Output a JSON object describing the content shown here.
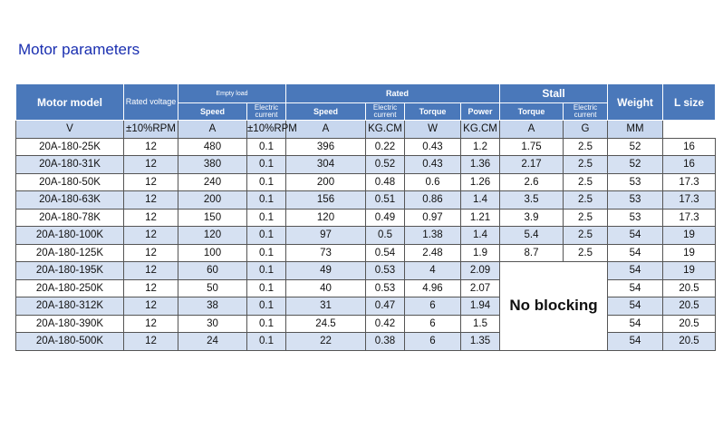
{
  "title": "Motor parameters",
  "table": {
    "groups": {
      "motor_model": "Motor model",
      "rated_voltage": "Rated voltage",
      "empty_load": "Empty load",
      "rated": "Rated",
      "stall": "Stall",
      "weight": "Weight",
      "l_size": "L size"
    },
    "subheaders": [
      "Speed",
      "Electric current",
      "Speed",
      "Electric current",
      "Torque",
      "Power",
      "Torque",
      "Electric current"
    ],
    "units": [
      "V",
      "±10%RPM",
      "A",
      "±10%RPM",
      "A",
      "KG.CM",
      "W",
      "KG.CM",
      "A",
      "G",
      "MM"
    ],
    "rows": [
      [
        "20A-180-25K",
        12,
        480,
        0.1,
        396,
        0.22,
        0.43,
        1.2,
        1.75,
        2.5,
        52,
        16
      ],
      [
        "20A-180-31K",
        12,
        380,
        0.1,
        304,
        0.52,
        0.43,
        1.36,
        2.17,
        2.5,
        52,
        16
      ],
      [
        "20A-180-50K",
        12,
        240,
        0.1,
        200,
        0.48,
        0.6,
        1.26,
        2.6,
        2.5,
        53,
        17.3
      ],
      [
        "20A-180-63K",
        12,
        200,
        0.1,
        156,
        0.51,
        0.86,
        1.4,
        3.5,
        2.5,
        53,
        17.3
      ],
      [
        "20A-180-78K",
        12,
        150,
        0.1,
        120,
        0.49,
        0.97,
        1.21,
        3.9,
        2.5,
        53,
        17.3
      ],
      [
        "20A-180-100K",
        12,
        120,
        0.1,
        97,
        0.5,
        1.38,
        1.4,
        5.4,
        2.5,
        54,
        19
      ],
      [
        "20A-180-125K",
        12,
        100,
        0.1,
        73,
        0.54,
        2.48,
        1.9,
        8.7,
        2.5,
        54,
        19
      ],
      [
        "20A-180-195K",
        12,
        60,
        0.1,
        49,
        0.53,
        4,
        2.09,
        54,
        19
      ],
      [
        "20A-180-250K",
        12,
        50,
        0.1,
        40,
        0.53,
        4.96,
        2.07,
        54,
        20.5
      ],
      [
        "20A-180-312K",
        12,
        38,
        0.1,
        31,
        0.47,
        6,
        1.94,
        54,
        20.5
      ],
      [
        "20A-180-390K",
        12,
        30,
        0.1,
        24.5,
        0.42,
        6,
        1.5,
        54,
        20.5
      ],
      [
        "20A-180-500K",
        12,
        24,
        0.1,
        22,
        0.38,
        6,
        1.35,
        54,
        20.5
      ]
    ],
    "no_blocking": "No blocking"
  }
}
